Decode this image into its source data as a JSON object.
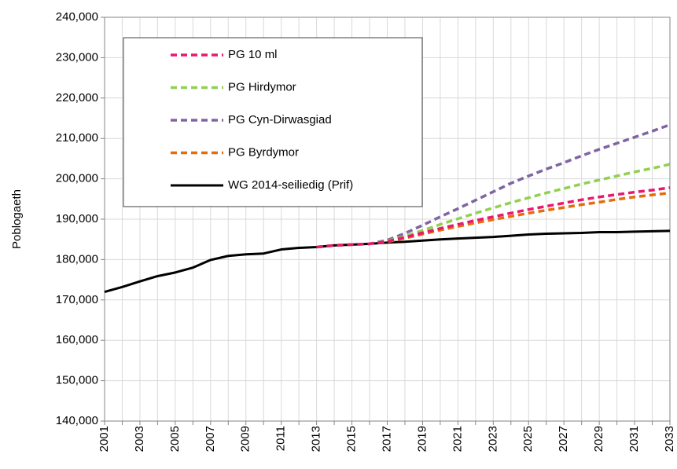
{
  "chart_data": {
    "type": "line",
    "y_label": "Poblogaeth",
    "categories": [
      "2001",
      null,
      "2003",
      null,
      "2005",
      null,
      "2007",
      null,
      "2009",
      null,
      "2011",
      null,
      "2013",
      null,
      "2015",
      null,
      "2017",
      null,
      "2019",
      null,
      "2021",
      null,
      "2023",
      null,
      "2025",
      null,
      "2027",
      null,
      "2029",
      null,
      "2031",
      null,
      "2033"
    ],
    "ylim": [
      140000,
      240000
    ],
    "yticks": [
      {
        "value": 140000,
        "label": "140,000"
      },
      {
        "value": 150000,
        "label": "150,000"
      },
      {
        "value": 160000,
        "label": "160,000"
      },
      {
        "value": 170000,
        "label": "170,000"
      },
      {
        "value": 180000,
        "label": "180,000"
      },
      {
        "value": 190000,
        "label": "190,000"
      },
      {
        "value": 200000,
        "label": "200,000"
      },
      {
        "value": 210000,
        "label": "210,000"
      },
      {
        "value": 220000,
        "label": "220,000"
      },
      {
        "value": 230000,
        "label": "230,000"
      },
      {
        "value": 240000,
        "label": "240,000"
      }
    ],
    "grid": true,
    "legend": "upper left",
    "series": [
      {
        "name": "PG 10 ml",
        "color": "#e8186e",
        "dashed": true,
        "values": [
          null,
          null,
          null,
          null,
          null,
          null,
          null,
          null,
          null,
          null,
          null,
          null,
          183100,
          183500,
          183700,
          183900,
          184500,
          185500,
          186600,
          187700,
          188700,
          189700,
          190600,
          191500,
          192400,
          193200,
          194000,
          194800,
          195500,
          196100,
          196700,
          197200,
          197800
        ]
      },
      {
        "name": "PG Hirdymor",
        "color": "#92d050",
        "dashed": true,
        "values": [
          null,
          null,
          null,
          null,
          null,
          null,
          null,
          null,
          null,
          null,
          null,
          null,
          183100,
          183500,
          183700,
          183900,
          184600,
          185800,
          187200,
          188700,
          190100,
          191500,
          192800,
          194100,
          195300,
          196500,
          197600,
          198700,
          199700,
          200700,
          201700,
          202600,
          203600
        ]
      },
      {
        "name": "PG Cyn-Dirwasgiad",
        "color": "#8064a2",
        "dashed": true,
        "values": [
          null,
          null,
          null,
          null,
          null,
          null,
          null,
          null,
          null,
          null,
          null,
          null,
          183100,
          183500,
          183700,
          183900,
          184800,
          186500,
          188500,
          190600,
          192600,
          194700,
          196800,
          198900,
          200700,
          202400,
          204000,
          205700,
          207300,
          208800,
          210300,
          211800,
          213400
        ]
      },
      {
        "name": "PG Byrdymor",
        "color": "#e46c0a",
        "dashed": true,
        "values": [
          null,
          null,
          null,
          null,
          null,
          null,
          null,
          null,
          null,
          null,
          null,
          null,
          183100,
          183500,
          183700,
          183900,
          184400,
          185300,
          186300,
          187300,
          188200,
          189100,
          189900,
          190700,
          191500,
          192200,
          192900,
          193600,
          194200,
          194900,
          195500,
          196000,
          196500
        ]
      },
      {
        "name": "WG 2014-seiliedig (Prif)",
        "color": "#000000",
        "dashed": false,
        "values": [
          172000,
          173200,
          174600,
          175900,
          176800,
          178000,
          179900,
          180900,
          181300,
          181500,
          182500,
          182900,
          183100,
          183500,
          183700,
          183900,
          184200,
          184400,
          184700,
          185000,
          185200,
          185400,
          185600,
          185900,
          186200,
          186400,
          186500,
          186600,
          186800,
          186800,
          186900,
          187000,
          187100
        ]
      }
    ]
  }
}
